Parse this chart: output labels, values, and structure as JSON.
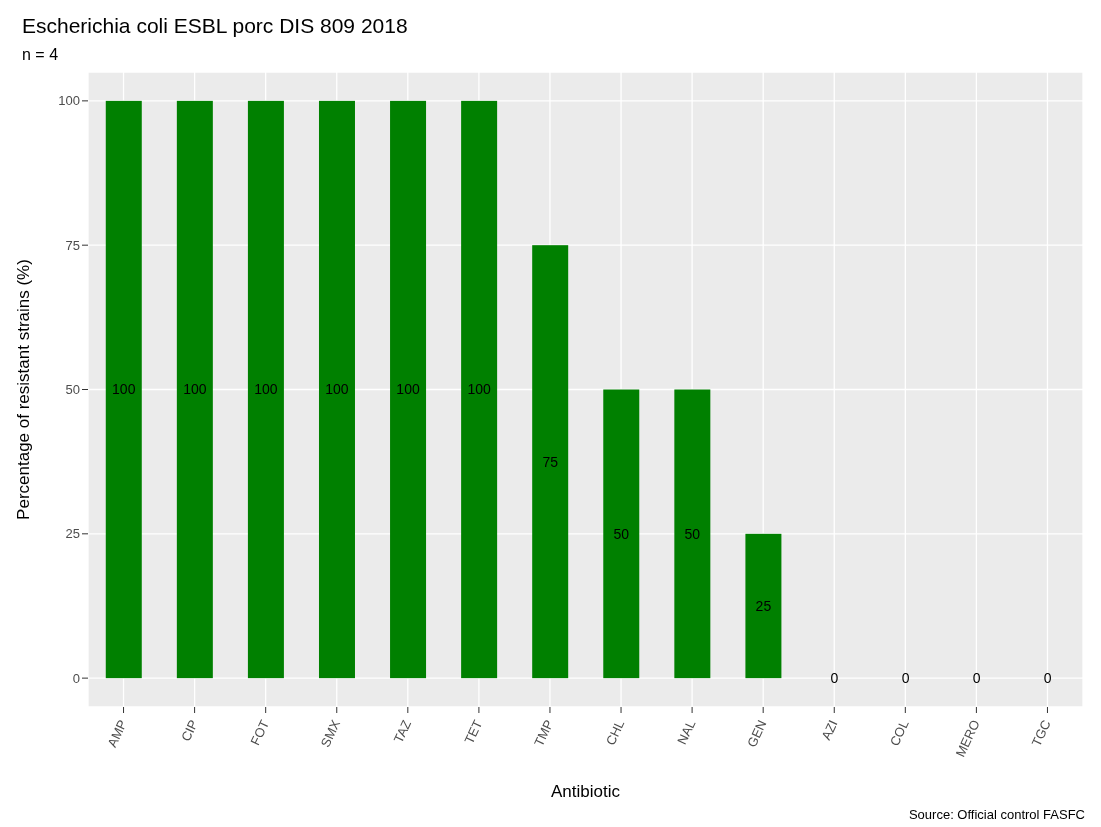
{
  "chart_data": {
    "type": "bar",
    "title": "Escherichia coli ESBL porc DIS 809 2018",
    "subtitle": "n =  4",
    "xlabel": "Antibiotic",
    "ylabel": "Percentage of resistant strains (%)",
    "categories": [
      "AMP",
      "CIP",
      "FOT",
      "SMX",
      "TAZ",
      "TET",
      "TMP",
      "CHL",
      "NAL",
      "GEN",
      "AZI",
      "COL",
      "MERO",
      "TGC"
    ],
    "values": [
      100,
      100,
      100,
      100,
      100,
      100,
      75,
      50,
      50,
      25,
      0,
      0,
      0,
      0
    ],
    "color": "#008000",
    "ylim": [
      -5,
      105
    ],
    "yticks": [
      0,
      25,
      50,
      75,
      100
    ],
    "grid": true,
    "data_labels": true,
    "annotations": [
      "Source: Official control FASFC"
    ]
  }
}
